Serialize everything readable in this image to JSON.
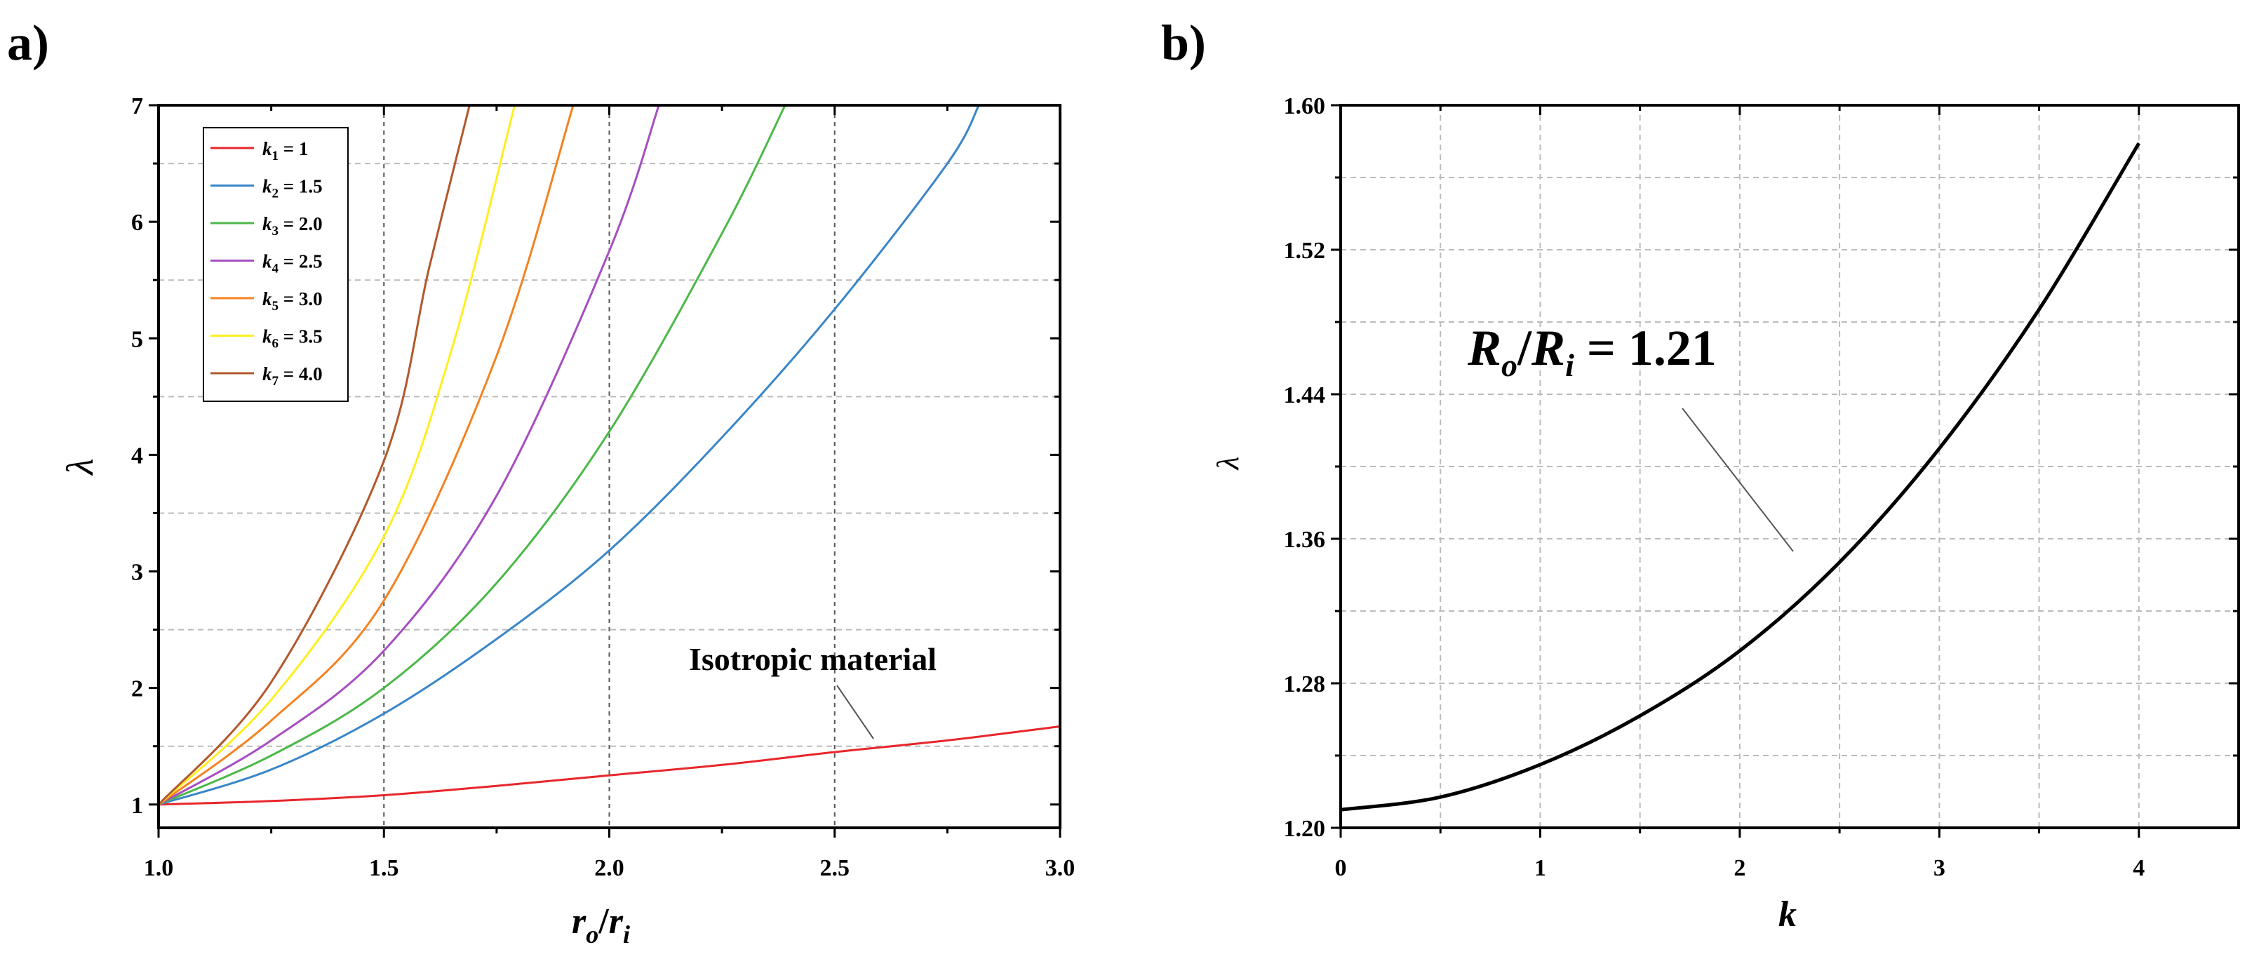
{
  "panels": {
    "a": {
      "label": "a)"
    },
    "b": {
      "label": "b)"
    }
  },
  "chart_data": [
    {
      "id": "a",
      "type": "line",
      "title": "",
      "xlabel": "r_o/r_i",
      "xlabel_parts": {
        "main1": "r",
        "sub1": "o",
        "sep": "/",
        "main2": "r",
        "sub2": "i"
      },
      "ylabel": "λ",
      "xlim": [
        1.0,
        3.0
      ],
      "ylim": [
        0.8,
        7
      ],
      "x_ticks": [
        1.0,
        1.5,
        2.0,
        2.5,
        3.0
      ],
      "x_tick_labels": [
        "1.0",
        "1.5",
        "2.0",
        "2.5",
        "3.0"
      ],
      "y_ticks": [
        1,
        2,
        3,
        4,
        5,
        6,
        7
      ],
      "y_tick_labels": [
        "1",
        "2",
        "3",
        "4",
        "5",
        "6",
        "7"
      ],
      "grid": true,
      "legend_position": "top-left",
      "series": [
        {
          "name": "k1 = 1",
          "k": "k",
          "sub": "1",
          "val": "= 1",
          "color": "#e8262b",
          "x": [
            1.0,
            1.25,
            1.5,
            1.75,
            2.0,
            2.25,
            2.5,
            2.75,
            3.0
          ],
          "y": [
            1.0,
            1.03,
            1.08,
            1.16,
            1.25,
            1.34,
            1.45,
            1.55,
            1.67
          ]
        },
        {
          "name": "k2 = 1.5",
          "k": "k",
          "sub": "2",
          "val": "= 1.5",
          "color": "#3a86c8",
          "x": [
            1.0,
            1.25,
            1.5,
            1.75,
            2.0,
            2.25,
            2.5,
            2.75,
            2.82
          ],
          "y": [
            1.0,
            1.3,
            1.78,
            2.42,
            3.18,
            4.15,
            5.25,
            6.5,
            7.0
          ]
        },
        {
          "name": "k3 = 2.0",
          "k": "k",
          "sub": "3",
          "val": "= 2.0",
          "color": "#4cb848",
          "x": [
            1.0,
            1.25,
            1.5,
            1.75,
            2.0,
            2.25,
            2.39
          ],
          "y": [
            1.0,
            1.42,
            2.0,
            2.9,
            4.2,
            5.9,
            7.0
          ]
        },
        {
          "name": "k4 = 2.5",
          "k": "k",
          "sub": "4",
          "val": "= 2.5",
          "color": "#a64ec1",
          "x": [
            1.0,
            1.25,
            1.5,
            1.75,
            2.0,
            2.11
          ],
          "y": [
            1.0,
            1.55,
            2.32,
            3.65,
            5.75,
            7.0
          ]
        },
        {
          "name": "k5 = 3.0",
          "k": "k",
          "sub": "5",
          "val": "= 3.0",
          "color": "#f58220",
          "x": [
            1.0,
            1.25,
            1.5,
            1.75,
            1.92
          ],
          "y": [
            1.0,
            1.72,
            2.75,
            4.85,
            7.0
          ]
        },
        {
          "name": "k6 = 3.5",
          "k": "k",
          "sub": "6",
          "val": "= 3.5",
          "color": "#ffef1f",
          "x": [
            1.0,
            1.25,
            1.5,
            1.65,
            1.79
          ],
          "y": [
            1.0,
            1.9,
            3.3,
            4.9,
            7.0
          ]
        },
        {
          "name": "k7 = 4.0",
          "k": "k",
          "sub": "7",
          "val": "= 4.0",
          "color": "#b2582d",
          "x": [
            1.0,
            1.25,
            1.5,
            1.6,
            1.69
          ],
          "y": [
            1.0,
            2.05,
            3.95,
            5.6,
            7.0
          ]
        }
      ],
      "annotation": {
        "text": "Isotropic  material"
      }
    },
    {
      "id": "b",
      "type": "line",
      "title": "",
      "xlabel": "k",
      "ylabel": "λ",
      "xlim": [
        0,
        4.5
      ],
      "ylim": [
        1.2,
        1.6
      ],
      "x_ticks": [
        0,
        1,
        2,
        3,
        4
      ],
      "x_tick_labels": [
        "0",
        "1",
        "2",
        "3",
        "4"
      ],
      "y_ticks": [
        1.2,
        1.28,
        1.36,
        1.44,
        1.52,
        1.6
      ],
      "y_tick_labels": [
        "1.20",
        "1.28",
        "1.36",
        "1.44",
        "1.52",
        "1.60"
      ],
      "grid": true,
      "series": [
        {
          "name": "Ro/Ri = 1.21",
          "color": "#000000",
          "x": [
            0,
            0.5,
            1.0,
            1.5,
            2.0,
            2.5,
            3.0,
            3.5,
            4.0
          ],
          "y": [
            1.21,
            1.217,
            1.235,
            1.262,
            1.298,
            1.347,
            1.41,
            1.487,
            1.579
          ]
        }
      ],
      "annotation": {
        "main1": "R",
        "sub1": "o",
        "sep": "/",
        "main2": "R",
        "sub2": "i",
        "val": " = 1.21"
      }
    }
  ]
}
